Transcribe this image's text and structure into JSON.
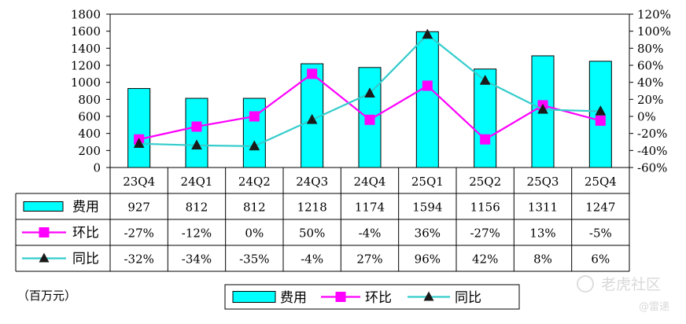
{
  "chart_data": {
    "type": "bar",
    "categories": [
      "23Q4",
      "24Q1",
      "24Q2",
      "24Q3",
      "24Q4",
      "25Q1",
      "25Q2",
      "25Q3",
      "25Q4"
    ],
    "series": [
      {
        "name": "费用",
        "kind": "bar",
        "axis": "left",
        "values": [
          927,
          812,
          812,
          1218,
          1174,
          1594,
          1156,
          1311,
          1247
        ],
        "labels": [
          "927",
          "812",
          "812",
          "1218",
          "1174",
          "1594",
          "1156",
          "1311",
          "1247"
        ],
        "color": "#00ffff"
      },
      {
        "name": "环比",
        "kind": "line",
        "axis": "right",
        "marker": "square",
        "values": [
          -27,
          -12,
          0,
          50,
          -4,
          36,
          -27,
          13,
          -5
        ],
        "labels": [
          "-27%",
          "-12%",
          "0%",
          "50%",
          "-4%",
          "36%",
          "-27%",
          "13%",
          "-5%"
        ],
        "color": "#ff00ff"
      },
      {
        "name": "同比",
        "kind": "line",
        "axis": "right",
        "marker": "triangle",
        "values": [
          -32,
          -34,
          -35,
          -4,
          27,
          96,
          42,
          8,
          6
        ],
        "labels": [
          "-32%",
          "-34%",
          "-35%",
          "-4%",
          "27%",
          "96%",
          "42%",
          "8%",
          "6%"
        ],
        "color": "#33cccc"
      }
    ],
    "ylim": [
      0,
      1800
    ],
    "y_ticks": [
      "1800",
      "1600",
      "1400",
      "1200",
      "1000",
      "800",
      "600",
      "400",
      "200",
      "0"
    ],
    "y2lim": [
      -60,
      120
    ],
    "y2_ticks": [
      "120%",
      "100%",
      "80%",
      "60%",
      "40%",
      "20%",
      "0%",
      "-20%",
      "-40%",
      "-60%"
    ],
    "grid": false,
    "data_table": true,
    "legend_position": "bottom"
  },
  "unit_label": "（百万元）",
  "watermark": {
    "text": "老虎社区",
    "sub": "@雷递"
  }
}
